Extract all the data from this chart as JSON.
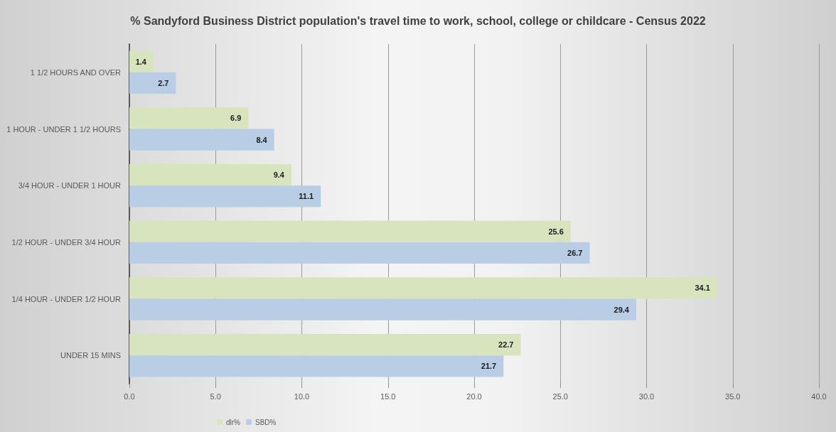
{
  "chart_data": {
    "type": "bar",
    "orientation": "horizontal",
    "title": "% Sandyford Business District population's travel time to work, school, college or childcare - Census 2022",
    "categories": [
      "1 1/2 HOURS AND OVER",
      "1 HOUR - UNDER 1 1/2 HOURS",
      "3/4 HOUR - UNDER 1 HOUR",
      "1/2 HOUR - UNDER 3/4 HOUR",
      "1/4 HOUR - UNDER 1/2 HOUR",
      "UNDER 15 MINS"
    ],
    "series": [
      {
        "name": "dlr%",
        "color": "#d7e4bd",
        "values": [
          1.4,
          6.9,
          9.4,
          25.6,
          34.1,
          22.7
        ]
      },
      {
        "name": "SBD%",
        "color": "#b9cde5",
        "values": [
          2.7,
          8.4,
          11.1,
          26.7,
          29.4,
          21.7
        ]
      }
    ],
    "xlim": [
      0,
      40
    ],
    "xticks": [
      {
        "value": 0,
        "label": "0.0"
      },
      {
        "value": 5,
        "label": "5.0"
      },
      {
        "value": 10,
        "label": "10.0"
      },
      {
        "value": 15,
        "label": "15.0"
      },
      {
        "value": 20,
        "label": "20.0"
      },
      {
        "value": 25,
        "label": "25.0"
      },
      {
        "value": 30,
        "label": "30.0"
      },
      {
        "value": 35,
        "label": "35.0"
      },
      {
        "value": 40,
        "label": "40.0"
      }
    ],
    "grid": "x",
    "legend": "bottom",
    "data_labels": true
  }
}
